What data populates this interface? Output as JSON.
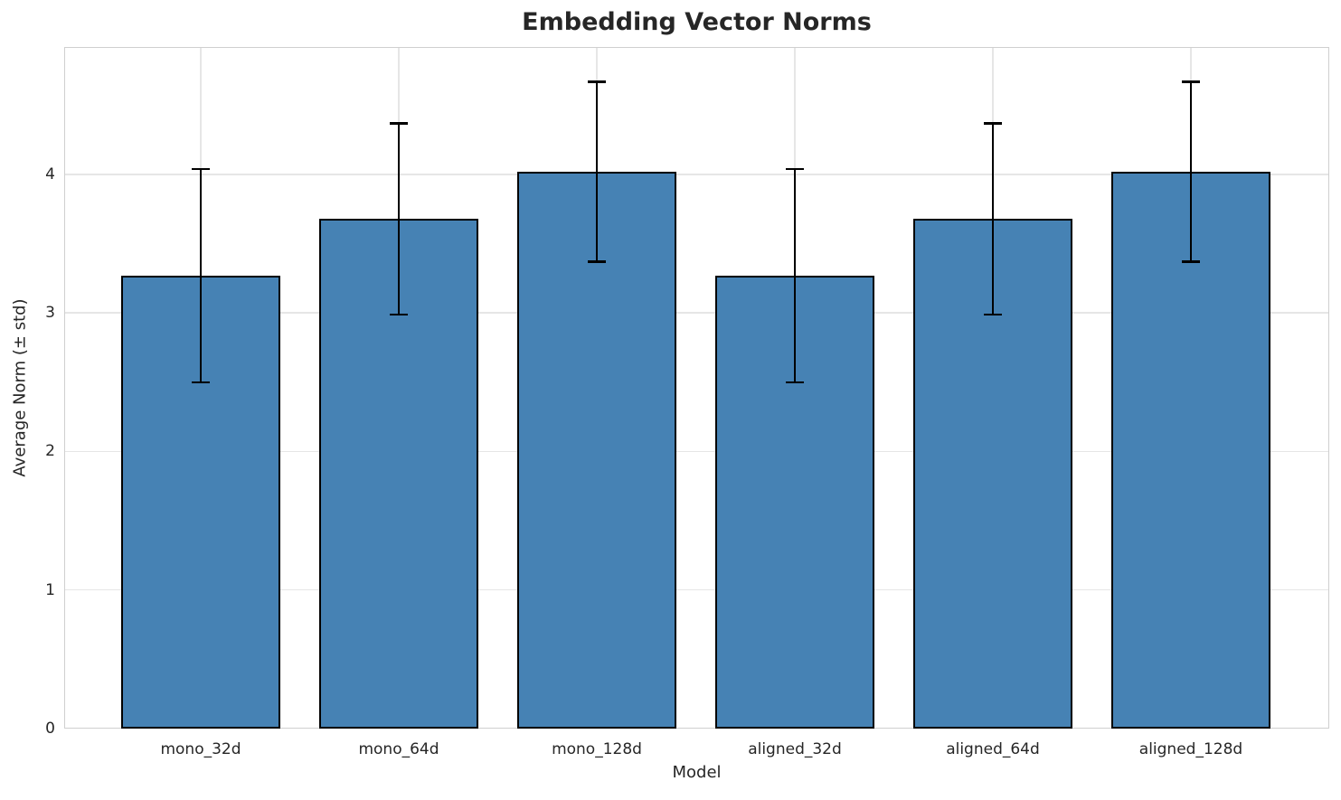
{
  "chart_data": {
    "type": "bar",
    "title": "Embedding Vector Norms",
    "xlabel": "Model",
    "ylabel": "Average Norm (± std)",
    "categories": [
      "mono_32d",
      "mono_64d",
      "mono_128d",
      "aligned_32d",
      "aligned_64d",
      "aligned_128d"
    ],
    "series": [
      {
        "name": "Average Norm",
        "values": [
          3.27,
          3.68,
          4.02,
          3.27,
          3.68,
          4.02
        ],
        "errors": [
          0.77,
          0.69,
          0.65,
          0.77,
          0.69,
          0.65
        ]
      }
    ],
    "error_caps_upper": [
      4.04,
      4.37,
      4.67,
      4.04,
      4.37,
      4.67
    ],
    "error_caps_lower": [
      2.5,
      2.99,
      3.37,
      2.5,
      2.99,
      3.37
    ],
    "y_ticks": [
      0,
      1,
      2,
      3,
      4
    ],
    "ylim": [
      0,
      4.92
    ],
    "grid": true,
    "legend_position": "none",
    "colors": {
      "bar_fill": "#4682b4",
      "bar_edge": "#000000",
      "error_bar": "#000000",
      "grid_line": "#e6e6e6",
      "spine": "#cfcfcf",
      "text": "#262626",
      "background": "#ffffff"
    }
  }
}
